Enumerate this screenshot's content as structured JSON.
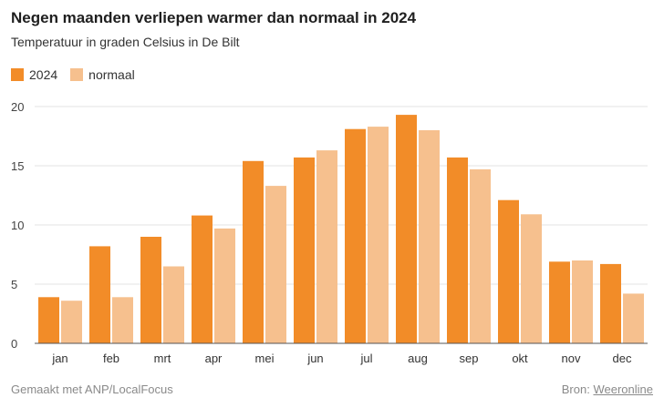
{
  "header": {
    "title": "Negen maanden verliepen warmer dan normaal in 2024",
    "subtitle": "Temperatuur in graden Celsius in De Bilt"
  },
  "colors": {
    "series_2024": "#f28c28",
    "series_normaal": "#f6c08e",
    "grid": "#e3e3e3",
    "axis": "#555555"
  },
  "chart_data": {
    "type": "bar",
    "title": "Negen maanden verliepen warmer dan normaal in 2024",
    "subtitle": "Temperatuur in graden Celsius in De Bilt",
    "categories": [
      "jan",
      "feb",
      "mrt",
      "apr",
      "mei",
      "jun",
      "jul",
      "aug",
      "sep",
      "okt",
      "nov",
      "dec"
    ],
    "series": [
      {
        "name": "2024",
        "color": "#f28c28",
        "values": [
          3.9,
          8.2,
          9.0,
          10.8,
          15.4,
          15.7,
          18.1,
          19.3,
          15.7,
          12.1,
          6.9,
          6.7
        ]
      },
      {
        "name": "normaal",
        "color": "#f6c08e",
        "values": [
          3.6,
          3.9,
          6.5,
          9.7,
          13.3,
          16.3,
          18.3,
          18.0,
          14.7,
          10.9,
          7.0,
          4.2
        ]
      }
    ],
    "yticks": [
      0,
      5,
      10,
      15,
      20
    ],
    "ylim": [
      0,
      20
    ],
    "grid": true,
    "legend_position": "top-left"
  },
  "footer": {
    "credit": "Gemaakt met ANP/LocalFocus",
    "source_prefix": "Bron:",
    "source_link": "Weeronline"
  }
}
